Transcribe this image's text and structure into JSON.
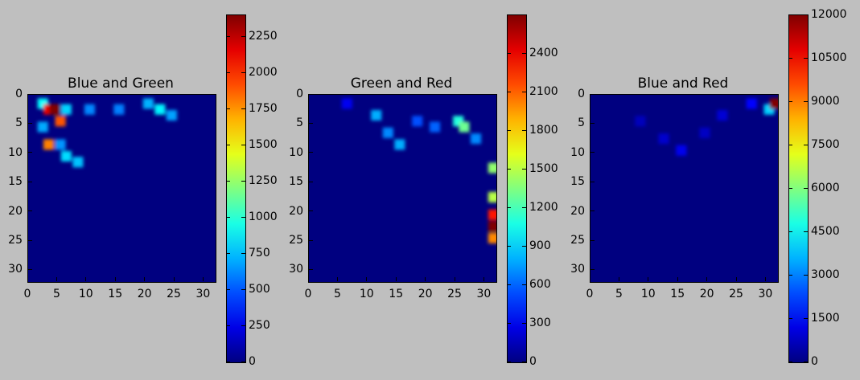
{
  "figure": {
    "background": "#bfbfbf"
  },
  "chart_data": [
    {
      "type": "heatmap",
      "title": "Blue and Green",
      "xticks": [
        0,
        5,
        10,
        15,
        20,
        25,
        30
      ],
      "yticks": [
        0,
        5,
        10,
        15,
        20,
        25,
        30
      ],
      "xlim": [
        0,
        32
      ],
      "ylim": [
        32,
        0
      ],
      "colormap": "jet",
      "clim": [
        0,
        2400
      ],
      "colorbar_ticks": [
        0,
        250,
        500,
        750,
        1000,
        1250,
        1500,
        1750,
        2000,
        2250
      ],
      "colorbar_labels": [
        "0",
        "250",
        "500",
        "750",
        "1000",
        "1250",
        "1500",
        "1750",
        "2000",
        "2250"
      ],
      "hotspots": [
        {
          "x": 4,
          "y": 2,
          "value": 2400
        },
        {
          "x": 3,
          "y": 2,
          "value": 2150
        },
        {
          "x": 5,
          "y": 4,
          "value": 1900
        },
        {
          "x": 3,
          "y": 8,
          "value": 1800
        },
        {
          "x": 2,
          "y": 1,
          "value": 900
        },
        {
          "x": 6,
          "y": 2,
          "value": 800
        },
        {
          "x": 10,
          "y": 2,
          "value": 620
        },
        {
          "x": 15,
          "y": 2,
          "value": 600
        },
        {
          "x": 20,
          "y": 1,
          "value": 720
        },
        {
          "x": 22,
          "y": 2,
          "value": 880
        },
        {
          "x": 24,
          "y": 3,
          "value": 680
        },
        {
          "x": 2,
          "y": 5,
          "value": 700
        },
        {
          "x": 5,
          "y": 8,
          "value": 650
        },
        {
          "x": 6,
          "y": 10,
          "value": 820
        },
        {
          "x": 8,
          "y": 11,
          "value": 760
        }
      ]
    },
    {
      "type": "heatmap",
      "title": "Green and Red",
      "xticks": [
        0,
        5,
        10,
        15,
        20,
        25,
        30
      ],
      "yticks": [
        0,
        5,
        10,
        15,
        20,
        25,
        30
      ],
      "xlim": [
        0,
        32
      ],
      "ylim": [
        32,
        0
      ],
      "colormap": "jet",
      "clim": [
        0,
        2700
      ],
      "colorbar_ticks": [
        0,
        300,
        600,
        900,
        1200,
        1500,
        1800,
        2100,
        2400
      ],
      "colorbar_labels": [
        "0",
        "300",
        "600",
        "900",
        "1200",
        "1500",
        "1800",
        "2100",
        "2400"
      ],
      "hotspots": [
        {
          "x": 6,
          "y": 1,
          "value": 300
        },
        {
          "x": 11,
          "y": 3,
          "value": 800
        },
        {
          "x": 13,
          "y": 6,
          "value": 700
        },
        {
          "x": 15,
          "y": 8,
          "value": 800
        },
        {
          "x": 18,
          "y": 4,
          "value": 550
        },
        {
          "x": 21,
          "y": 5,
          "value": 600
        },
        {
          "x": 25,
          "y": 4,
          "value": 1100
        },
        {
          "x": 26,
          "y": 5,
          "value": 1300
        },
        {
          "x": 28,
          "y": 7,
          "value": 700
        },
        {
          "x": 31,
          "y": 12,
          "value": 1400
        },
        {
          "x": 31,
          "y": 17,
          "value": 1500
        },
        {
          "x": 31,
          "y": 20,
          "value": 2300
        },
        {
          "x": 31,
          "y": 22,
          "value": 2700
        },
        {
          "x": 31,
          "y": 24,
          "value": 2000
        }
      ]
    },
    {
      "type": "heatmap",
      "title": "Blue and Red",
      "xticks": [
        0,
        5,
        10,
        15,
        20,
        25,
        30
      ],
      "yticks": [
        0,
        5,
        10,
        15,
        20,
        25,
        30
      ],
      "xlim": [
        0,
        32
      ],
      "ylim": [
        32,
        0
      ],
      "colormap": "jet",
      "clim": [
        0,
        12000
      ],
      "colorbar_ticks": [
        0,
        1500,
        3000,
        4500,
        6000,
        7500,
        9000,
        10500,
        12000
      ],
      "colorbar_labels": [
        "0",
        "1500",
        "3000",
        "4500",
        "6000",
        "7500",
        "9000",
        "10500",
        "12000"
      ],
      "hotspots": [
        {
          "x": 31,
          "y": 1,
          "value": 12000
        },
        {
          "x": 30,
          "y": 2,
          "value": 4000
        },
        {
          "x": 27,
          "y": 1,
          "value": 1500
        },
        {
          "x": 22,
          "y": 3,
          "value": 1000
        },
        {
          "x": 15,
          "y": 9,
          "value": 1300
        },
        {
          "x": 12,
          "y": 7,
          "value": 900
        },
        {
          "x": 8,
          "y": 4,
          "value": 700
        },
        {
          "x": 19,
          "y": 6,
          "value": 800
        }
      ]
    }
  ]
}
